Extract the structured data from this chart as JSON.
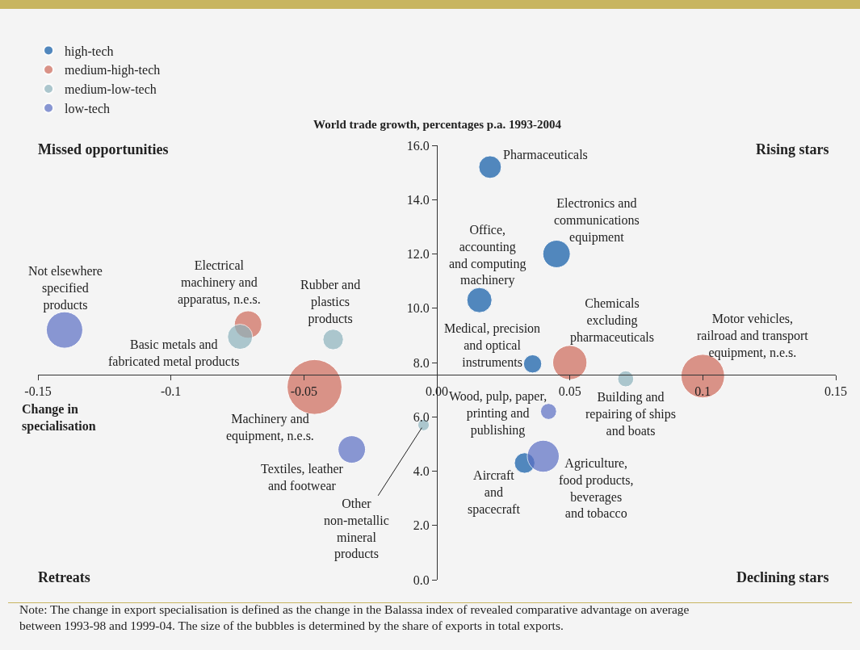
{
  "chart_data": {
    "type": "bubble",
    "ylabel": "World trade growth, percentages p.a. 1993-2004",
    "xlabel": "Change in\nspecialisation",
    "xlim": [
      -0.15,
      0.15
    ],
    "xticks": [
      -0.15,
      -0.1,
      -0.05,
      {
        "value": 0,
        "label": "0.00"
      },
      0.05,
      0.1,
      0.15
    ],
    "ylim": [
      0,
      16
    ],
    "yticks": [
      {
        "value": 0,
        "label": "0.0"
      },
      {
        "value": 2,
        "label": "2.0"
      },
      {
        "value": 4,
        "label": "4.0"
      },
      {
        "value": 6,
        "label": "6.0"
      },
      {
        "value": 8,
        "label": "8.0"
      },
      {
        "value": 10,
        "label": "10.0"
      },
      {
        "value": 12,
        "label": "12.0"
      },
      {
        "value": 14,
        "label": "14.0"
      },
      {
        "value": 16,
        "label": "16.0"
      }
    ],
    "series": [
      {
        "name": "high-tech",
        "color": "#0d5aa7",
        "x": [
          0.02,
          0.045,
          0.016,
          0.036,
          0.033
        ],
        "values": [
          15.2,
          12.0,
          10.3,
          7.95,
          4.3
        ],
        "sizes": [
          0.17,
          0.25,
          0.21,
          0.11,
          0.14
        ]
      },
      {
        "name": "medium-high-tech",
        "color": "#cf6a5a",
        "x": [
          0.05,
          0.1,
          -0.071,
          -0.046
        ],
        "values": [
          8.0,
          7.5,
          9.4,
          7.1
        ],
        "sizes": [
          0.39,
          0.63,
          0.25,
          1
        ]
      },
      {
        "name": "medium-low-tech",
        "color": "#8db3bd",
        "x": [
          0.071,
          -0.005,
          -0.039,
          -0.074
        ],
        "values": [
          7.4,
          5.7,
          8.85,
          8.95
        ],
        "sizes": [
          0.085,
          0.043,
          0.14,
          0.21
        ]
      },
      {
        "name": "low-tech",
        "color": "#5b6fc4",
        "x": [
          0.042,
          0.04,
          -0.032,
          -0.14
        ],
        "values": [
          6.2,
          4.55,
          4.8,
          9.2
        ],
        "sizes": [
          0.085,
          0.34,
          0.25,
          0.44
        ]
      }
    ],
    "legend": "top left",
    "grid": false,
    "annotations": [
      {
        "text": "Pharmaceuticals",
        "x": 0.02,
        "y": 15.2
      },
      {
        "text": "Electronics and\ncommunications\nequipment",
        "x": 0.045,
        "y": 12.0
      },
      {
        "text": "Office,\naccounting\nand computing\nmachinery",
        "x": 0.016,
        "y": 10.3
      },
      {
        "text": "Medical, precision\nand optical\ninstruments",
        "x": 0.036,
        "y": 7.95
      },
      {
        "text": "Aircraft\nand\nspacecraft",
        "x": 0.033,
        "y": 4.3
      },
      {
        "text": "Chemicals\nexcluding\npharmaceuticals",
        "x": 0.05,
        "y": 8.0
      },
      {
        "text": "Motor vehicles,\nrailroad and transport\nequipment, n.e.s.",
        "x": 0.1,
        "y": 7.5
      },
      {
        "text": "Electrical\nmachinery and\napparatus, n.e.s.",
        "x": -0.071,
        "y": 9.4
      },
      {
        "text": "Machinery and\nequipment, n.e.s.",
        "x": -0.046,
        "y": 7.1
      },
      {
        "text": "Building and\nrepairing of ships\nand boats",
        "x": 0.071,
        "y": 7.4
      },
      {
        "text": "Other\nnon-metallic\nmineral\nproducts",
        "x": -0.005,
        "y": 5.7
      },
      {
        "text": "Rubber and\nplastics\nproducts",
        "x": -0.039,
        "y": 8.85
      },
      {
        "text": "Basic metals and\nfabricated metal products",
        "x": -0.074,
        "y": 8.95
      },
      {
        "text": "Wood, pulp, paper,\nprinting and\npublishing",
        "x": 0.042,
        "y": 6.2
      },
      {
        "text": "Agriculture,\nfood products,\nbeverages\nand tobacco",
        "x": 0.04,
        "y": 4.55
      },
      {
        "text": "Textiles, leather\nand footwear",
        "x": -0.032,
        "y": 4.8
      },
      {
        "text": "Not elsewhere\nspecified\nproducts",
        "x": -0.14,
        "y": 9.2
      },
      "Missed opportunities",
      "Rising stars",
      "Retreats",
      "Declining stars",
      "Note: The change in export specialisation is defined as the change in the Balassa index of revealed comparative advantage on average\nbetween 1993-98 and 1999-04. The size of the bubbles is determined by the share of exports in total exports."
    ]
  }
}
